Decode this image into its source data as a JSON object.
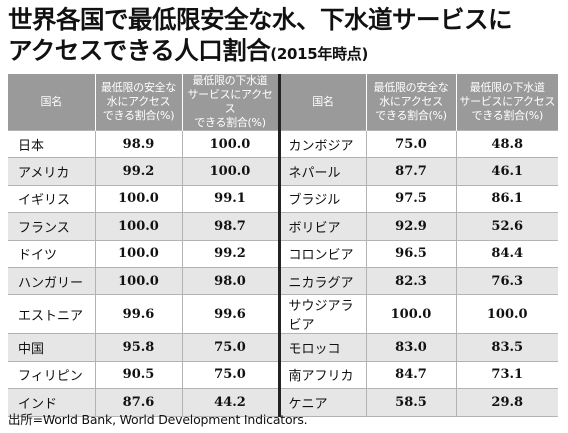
{
  "title": {
    "line1": "世界各国で最低限安全な水、下水道サービスに",
    "line2": "アクセスできる人口割合",
    "year": "(2015年時点)"
  },
  "table": {
    "headers": {
      "country": "国名",
      "water": "最低限の安全な\n水にアクセス\nできる割合(%)",
      "sewer": "最低限の下水道\nサービスにアクセス\nできる割合(%)"
    },
    "left": [
      {
        "country": "日本",
        "water": "98.9",
        "sewer": "100.0"
      },
      {
        "country": "アメリカ",
        "water": "99.2",
        "sewer": "100.0"
      },
      {
        "country": "イギリス",
        "water": "100.0",
        "sewer": "99.1"
      },
      {
        "country": "フランス",
        "water": "100.0",
        "sewer": "98.7"
      },
      {
        "country": "ドイツ",
        "water": "100.0",
        "sewer": "99.2"
      },
      {
        "country": "ハンガリー",
        "water": "100.0",
        "sewer": "98.0"
      },
      {
        "country": "エストニア",
        "water": "99.6",
        "sewer": "99.6"
      },
      {
        "country": "中国",
        "water": "95.8",
        "sewer": "75.0"
      },
      {
        "country": "フィリピン",
        "water": "90.5",
        "sewer": "75.0"
      },
      {
        "country": "インド",
        "water": "87.6",
        "sewer": "44.2"
      }
    ],
    "right": [
      {
        "country": "カンボジア",
        "water": "75.0",
        "sewer": "48.8"
      },
      {
        "country": "ネパール",
        "water": "87.7",
        "sewer": "46.1"
      },
      {
        "country": "ブラジル",
        "water": "97.5",
        "sewer": "86.1"
      },
      {
        "country": "ボリビア",
        "water": "92.9",
        "sewer": "52.6"
      },
      {
        "country": "コロンビア",
        "water": "96.5",
        "sewer": "84.4"
      },
      {
        "country": "ニカラグア",
        "water": "82.3",
        "sewer": "76.3"
      },
      {
        "country": "サウジアラビア",
        "water": "100.0",
        "sewer": "100.0"
      },
      {
        "country": "モロッコ",
        "water": "83.0",
        "sewer": "83.5"
      },
      {
        "country": "南アフリカ",
        "water": "84.7",
        "sewer": "73.1"
      },
      {
        "country": "ケニア",
        "water": "58.5",
        "sewer": "29.8"
      }
    ]
  },
  "source": "出所=World Bank, World Development Indicators.",
  "colors": {
    "header_bg": "#9a9a9a",
    "alt_row": "#e6e6e6",
    "separator": "#222222"
  }
}
